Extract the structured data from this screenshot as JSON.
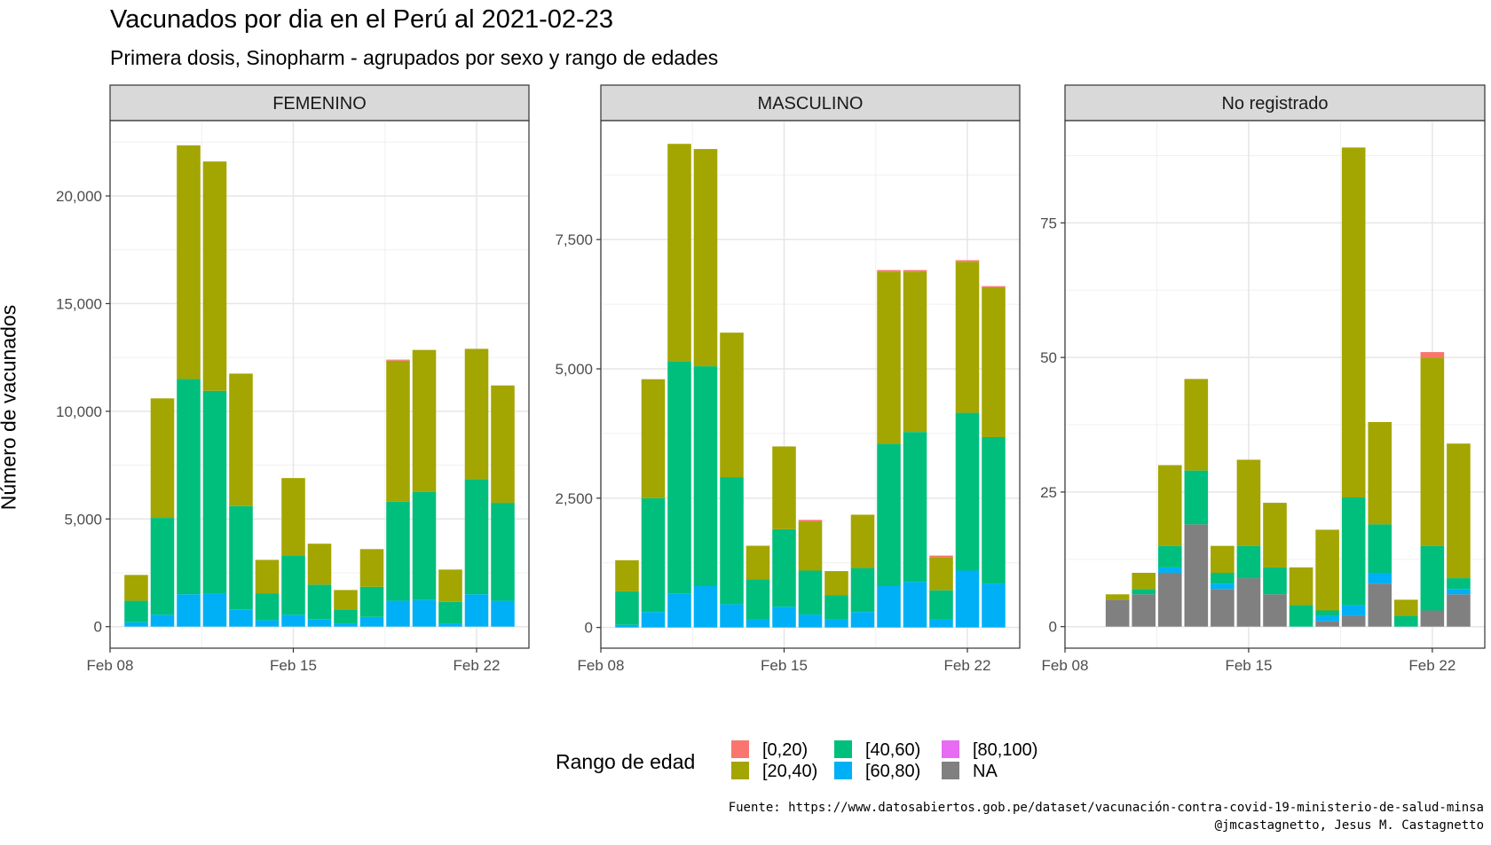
{
  "title": "Vacunados por dia en el Perú al 2021-02-23",
  "subtitle": "Primera dosis, Sinopharm - agrupados por sexo y rango de edades",
  "ylabel": "Número de vacunados",
  "caption_source": "Fuente: https://www.datosabiertos.gob.pe/dataset/vacunación-contra-covid-19-ministerio-de-salud-minsa",
  "caption_author": "@jmcastagnetto, Jesus M. Castagnetto",
  "legend": {
    "title": "Rango de edad",
    "items": [
      {
        "label": "[0,20)",
        "color": "#F8766D"
      },
      {
        "label": "[20,40)",
        "color": "#A3A500"
      },
      {
        "label": "[40,60)",
        "color": "#00BF7D"
      },
      {
        "label": "[60,80)",
        "color": "#00B0F6"
      },
      {
        "label": "[80,100)",
        "color": "#E76BF3"
      },
      {
        "label": "NA",
        "color": "#808080"
      }
    ]
  },
  "chart_data": {
    "type": "bar",
    "stacked": true,
    "x": [
      "2021-02-09",
      "2021-02-10",
      "2021-02-11",
      "2021-02-12",
      "2021-02-13",
      "2021-02-14",
      "2021-02-15",
      "2021-02-16",
      "2021-02-17",
      "2021-02-18",
      "2021-02-19",
      "2021-02-20",
      "2021-02-21",
      "2021-02-22",
      "2021-02-23"
    ],
    "x_ticks": [
      {
        "date": "2021-02-08",
        "label": "Feb 08"
      },
      {
        "date": "2021-02-15",
        "label": "Feb 15"
      },
      {
        "date": "2021-02-22",
        "label": "Feb 22"
      }
    ],
    "xlim": [
      "2021-02-08",
      "2021-02-24"
    ],
    "grid": true,
    "legend_position": "bottom",
    "stack_order": [
      "NA",
      "[80,100)",
      "[60,80)",
      "[40,60)",
      "[20,40)",
      "[0,20)"
    ],
    "panels": [
      {
        "name": "FEMENINO",
        "ylim": [
          -1000,
          23500
        ],
        "y_ticks": [
          0,
          5000,
          10000,
          15000,
          20000
        ],
        "y_tick_labels": [
          "0",
          "5,000",
          "10,000",
          "15,000",
          "20,000"
        ],
        "series": [
          {
            "name": "[0,20)",
            "values": [
              0,
              0,
              0,
              0,
              0,
              0,
              0,
              0,
              0,
              0,
              50,
              0,
              0,
              0,
              0
            ]
          },
          {
            "name": "[20,40)",
            "values": [
              1200,
              5550,
              10850,
              10650,
              6150,
              1550,
              3600,
              1900,
              900,
              1750,
              6550,
              6600,
              1500,
              6050,
              5450
            ]
          },
          {
            "name": "[40,60)",
            "values": [
              1000,
              4500,
              10000,
              9400,
              4800,
              1250,
              2750,
              1600,
              650,
              1400,
              4600,
              5000,
              1000,
              5350,
              4550
            ]
          },
          {
            "name": "[60,80)",
            "values": [
              200,
              550,
              1500,
              1550,
              800,
              300,
              550,
              350,
              150,
              450,
              1200,
              1250,
              150,
              1500,
              1200
            ]
          },
          {
            "name": "[80,100)",
            "values": [
              0,
              0,
              0,
              0,
              0,
              0,
              0,
              0,
              0,
              0,
              0,
              0,
              0,
              0,
              0
            ]
          },
          {
            "name": "NA",
            "values": [
              0,
              0,
              0,
              0,
              0,
              0,
              0,
              0,
              0,
              0,
              0,
              0,
              0,
              0,
              0
            ]
          }
        ]
      },
      {
        "name": "MASCULINO",
        "ylim": [
          -400,
          9800
        ],
        "y_ticks": [
          0,
          2500,
          5000,
          7500
        ],
        "y_tick_labels": [
          "0",
          "2,500",
          "5,000",
          "7,500"
        ],
        "series": [
          {
            "name": "[0,20)",
            "values": [
              0,
              0,
              0,
              0,
              0,
              0,
              0,
              30,
              0,
              0,
              30,
              30,
              30,
              30,
              20
            ]
          },
          {
            "name": "[20,40)",
            "values": [
              600,
              2300,
              4200,
              4200,
              2800,
              650,
              1600,
              950,
              470,
              1030,
              3330,
              3100,
              640,
              2920,
              2900
            ]
          },
          {
            "name": "[40,60)",
            "values": [
              650,
              2200,
              4500,
              4250,
              2450,
              780,
              1500,
              850,
              470,
              850,
              2750,
              2900,
              570,
              3050,
              2830
            ]
          },
          {
            "name": "[60,80)",
            "values": [
              50,
              300,
              650,
              800,
              450,
              150,
              400,
              250,
              150,
              300,
              800,
              880,
              150,
              1100,
              850
            ]
          },
          {
            "name": "[80,100)",
            "values": [
              0,
              0,
              0,
              0,
              0,
              0,
              0,
              0,
              0,
              0,
              0,
              0,
              0,
              0,
              0
            ]
          },
          {
            "name": "NA",
            "values": [
              0,
              0,
              0,
              0,
              0,
              0,
              0,
              0,
              0,
              0,
              0,
              0,
              0,
              0,
              0
            ]
          }
        ]
      },
      {
        "name": "No registrado",
        "ylim": [
          -4,
          94
        ],
        "y_ticks": [
          0,
          25,
          50,
          75
        ],
        "y_tick_labels": [
          "0",
          "25",
          "50",
          "75"
        ],
        "series": [
          {
            "name": "[0,20)",
            "values": [
              0,
              0,
              0,
              0,
              0,
              0,
              0,
              0,
              0,
              0,
              0,
              0,
              0,
              1,
              0
            ]
          },
          {
            "name": "[20,40)",
            "values": [
              0,
              1,
              3,
              15,
              17,
              5,
              16,
              12,
              7,
              15,
              65,
              19,
              3,
              35,
              25
            ]
          },
          {
            "name": "[40,60)",
            "values": [
              0,
              0,
              1,
              4,
              10,
              2,
              6,
              5,
              4,
              1,
              20,
              9,
              2,
              12,
              2
            ]
          },
          {
            "name": "[60,80)",
            "values": [
              0,
              0,
              0,
              1,
              0,
              1,
              0,
              0,
              0,
              1,
              2,
              2,
              0,
              0,
              1
            ]
          },
          {
            "name": "[80,100)",
            "values": [
              0,
              0,
              0,
              0,
              0,
              0,
              0,
              0,
              0,
              0,
              0,
              0,
              0,
              0,
              0
            ]
          },
          {
            "name": "NA",
            "values": [
              0,
              5,
              6,
              10,
              19,
              7,
              9,
              6,
              0,
              1,
              2,
              8,
              0,
              3,
              6
            ]
          }
        ]
      }
    ]
  }
}
